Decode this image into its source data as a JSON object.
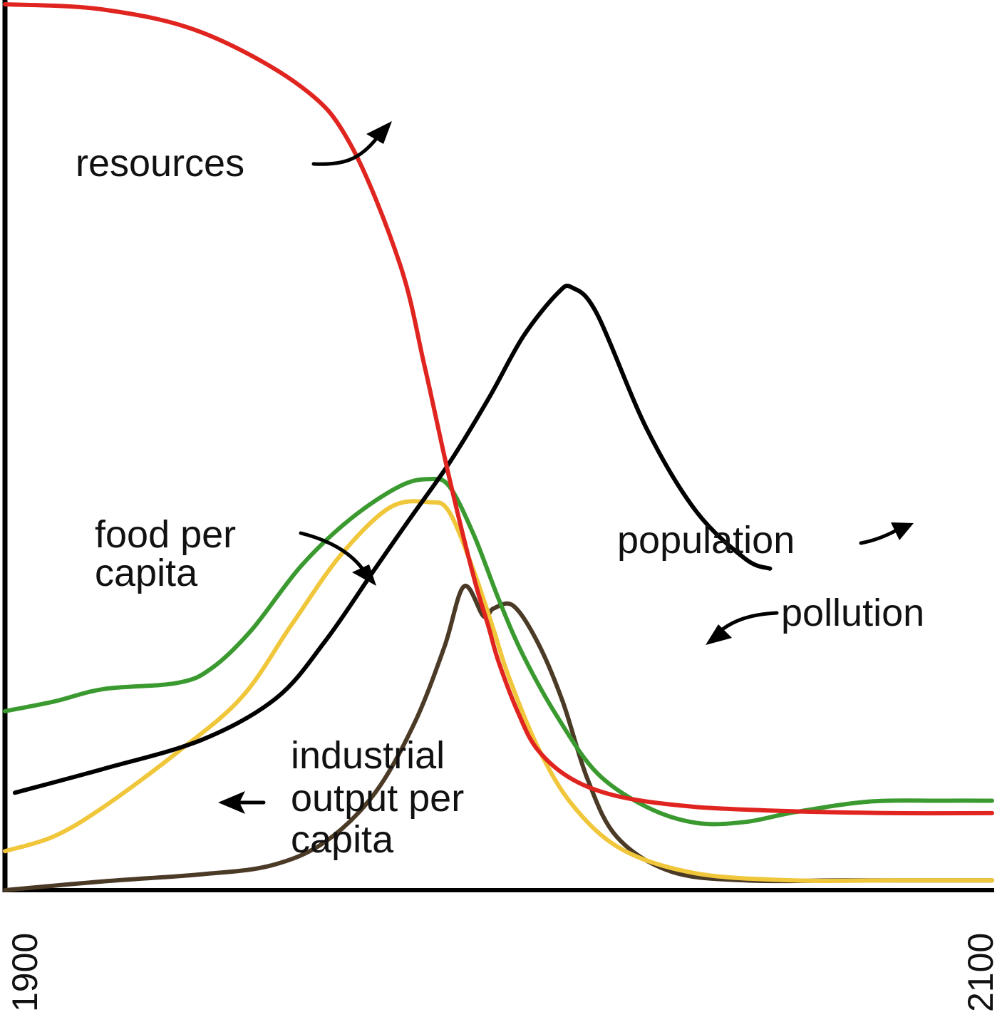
{
  "chart_data": {
    "type": "line",
    "title": "",
    "xlabel": "",
    "ylabel": "",
    "xlim": [
      1900,
      2100
    ],
    "ylim": [
      0,
      100
    ],
    "grid": false,
    "x_ticks": [
      "1900",
      "2100"
    ],
    "series": [
      {
        "name": "resources",
        "color": "#e0241f",
        "points": [
          [
            1900,
            100
          ],
          [
            1920,
            99.4
          ],
          [
            1940,
            96.8
          ],
          [
            1960,
            90.7
          ],
          [
            1970,
            84.2
          ],
          [
            1980,
            70.7
          ],
          [
            1985,
            59.2
          ],
          [
            1990,
            46.6
          ],
          [
            1995,
            35.3
          ],
          [
            1998,
            29.7
          ],
          [
            2000,
            25.8
          ],
          [
            2004,
            20.0
          ],
          [
            2008,
            15.8
          ],
          [
            2015,
            12.5
          ],
          [
            2025,
            10.5
          ],
          [
            2040,
            9.4
          ],
          [
            2060,
            8.9
          ],
          [
            2080,
            8.7
          ],
          [
            2100,
            8.7
          ]
        ]
      },
      {
        "name": "population",
        "color": "#000000",
        "points": [
          [
            1902,
            11.0
          ],
          [
            1920,
            13.7
          ],
          [
            1940,
            17.0
          ],
          [
            1955,
            21.7
          ],
          [
            1965,
            28.2
          ],
          [
            1975,
            36.3
          ],
          [
            1982,
            41.9
          ],
          [
            1990,
            48.2
          ],
          [
            1998,
            55.5
          ],
          [
            2005,
            62.5
          ],
          [
            2012,
            67.4
          ],
          [
            2015,
            68.0
          ],
          [
            2020,
            65.0
          ],
          [
            2030,
            52.1
          ],
          [
            2040,
            42.8
          ],
          [
            2050,
            37.4
          ],
          [
            2055,
            36.3
          ]
        ]
      },
      {
        "name": "food per capita",
        "color": "#3a9a2f",
        "points": [
          [
            1900,
            20.2
          ],
          [
            1910,
            21.3
          ],
          [
            1920,
            22.7
          ],
          [
            1935,
            23.4
          ],
          [
            1942,
            25.1
          ],
          [
            1950,
            29.4
          ],
          [
            1960,
            36.6
          ],
          [
            1970,
            41.9
          ],
          [
            1980,
            45.6
          ],
          [
            1986,
            46.4
          ],
          [
            1990,
            45.6
          ],
          [
            1995,
            40.1
          ],
          [
            2000,
            32.9
          ],
          [
            2005,
            26.5
          ],
          [
            2012,
            19.5
          ],
          [
            2020,
            13.2
          ],
          [
            2030,
            9.4
          ],
          [
            2040,
            7.6
          ],
          [
            2050,
            7.7
          ],
          [
            2060,
            8.8
          ],
          [
            2075,
            10.0
          ],
          [
            2090,
            10.1
          ],
          [
            2100,
            10.1
          ]
        ]
      },
      {
        "name": "industrial output per capita",
        "color": "#f0c63a",
        "points": [
          [
            1900,
            4.4
          ],
          [
            1910,
            6.1
          ],
          [
            1920,
            9.4
          ],
          [
            1935,
            15.6
          ],
          [
            1948,
            21.8
          ],
          [
            1958,
            29.9
          ],
          [
            1968,
            37.8
          ],
          [
            1978,
            43.2
          ],
          [
            1986,
            43.8
          ],
          [
            1990,
            42.7
          ],
          [
            1995,
            36.0
          ],
          [
            1999,
            29.4
          ],
          [
            2002,
            24.2
          ],
          [
            2008,
            16.1
          ],
          [
            2015,
            9.6
          ],
          [
            2025,
            4.6
          ],
          [
            2040,
            1.9
          ],
          [
            2060,
            1.1
          ],
          [
            2080,
            1.1
          ],
          [
            2100,
            1.1
          ]
        ]
      },
      {
        "name": "pollution",
        "color": "#4a3a26",
        "points": [
          [
            1900,
            0
          ],
          [
            1920,
            1.0
          ],
          [
            1940,
            1.8
          ],
          [
            1954,
            2.8
          ],
          [
            1965,
            5.5
          ],
          [
            1975,
            11.0
          ],
          [
            1983,
            18.9
          ],
          [
            1989,
            27.4
          ],
          [
            1993,
            34.3
          ],
          [
            1997,
            30.9
          ],
          [
            1999,
            31.8
          ],
          [
            2003,
            32.1
          ],
          [
            2008,
            27.9
          ],
          [
            2013,
            21.3
          ],
          [
            2018,
            12.6
          ],
          [
            2024,
            6.0
          ],
          [
            2035,
            2.1
          ],
          [
            2050,
            1.1
          ],
          [
            2070,
            1.1
          ],
          [
            2100,
            1.1
          ]
        ]
      }
    ],
    "annotations": {
      "resources": "resources",
      "food_per_capita": [
        "food per",
        "capita"
      ],
      "population": "population",
      "pollution": "pollution",
      "industrial_output_per_capita": [
        "industrial",
        "output per",
        "capita"
      ]
    }
  }
}
